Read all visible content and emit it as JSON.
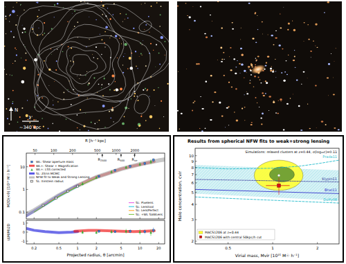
{
  "images": [
    {
      "north_label": "N",
      "scale_label": "1'",
      "scale_kpc": "~340 kpc"
    }
  ],
  "chart_data": [
    {
      "type": "line",
      "y_label": "M2D(<θ) [10¹⁴ M☉ h⁻¹]",
      "x2_label": "R [h⁻¹ kpc]",
      "log": true,
      "xlim": [
        0.15,
        25
      ],
      "xticks": [
        0.2,
        0.5,
        1,
        2,
        5,
        10,
        20
      ],
      "x2lim": [
        36.2,
        6025
      ],
      "x2ticks": [
        50,
        100,
        200,
        500,
        1000,
        2000
      ],
      "ylim": [
        0.05,
        40
      ],
      "yticks": [
        0.1,
        1,
        10
      ],
      "tick_labels": "y",
      "legend": "upper left",
      "annotations": [
        {
          "text": "R2500",
          "x2": 600
        },
        {
          "text": "R500",
          "x2": 1200
        },
        {
          "text": "Rvir",
          "x2": 1980
        }
      ],
      "series": [
        {
          "name": "WL: Shear aperture mass",
          "type": "scatter",
          "marker": "square",
          "color": "#3b7ddd",
          "x": [
            2.2,
            4,
            7,
            12,
            16.5
          ],
          "values": [
            3.8,
            7,
            10.5,
            14,
            20
          ],
          "errors": [
            0.5,
            0.9,
            1.5,
            2.5,
            4
          ]
        },
        {
          "name": "WL+: Shear + Magnification",
          "type": "area",
          "color": "#ee1111",
          "x": [
            0.9,
            1.5,
            2,
            3,
            5,
            8,
            12,
            17
          ],
          "values": [
            1.3,
            2.5,
            3.5,
            5,
            8,
            11,
            14,
            17
          ]
        },
        {
          "name": "WL+: LSS corrected",
          "type": "scatter",
          "marker": "triangle",
          "color": "#33cc33",
          "x": [
            1.2,
            2,
            3.5,
            6,
            10,
            15
          ],
          "values": [
            1.8,
            3.4,
            6,
            9.5,
            13,
            17
          ],
          "errors": [
            0.3,
            0.5,
            0.9,
            1.5,
            2.5,
            4
          ]
        },
        {
          "name": "SL: Zitrin MCMC",
          "type": "area",
          "color": "#2222dd",
          "x": [
            0.15,
            0.2,
            0.3,
            0.5,
            0.8,
            1.0
          ],
          "values": [
            0.07,
            0.11,
            0.22,
            0.55,
            1.1,
            1.5
          ]
        },
        {
          "name": "NFW fit to Weak and Strong Lensing",
          "type": "area",
          "color": "#aaaaaa",
          "x": [
            0.15,
            0.2,
            0.5,
            1,
            2,
            5,
            10,
            20,
            25
          ],
          "values": [
            0.08,
            0.12,
            0.55,
            1.5,
            3.5,
            8,
            13,
            19,
            21
          ]
        },
        {
          "name": "SL: Einstein radius",
          "type": "scatter",
          "marker": "open_square",
          "color": "#333333",
          "x": [
            0.28,
            0.45,
            0.7,
            1.0
          ],
          "values": [
            0.2,
            0.42,
            0.85,
            1.4
          ]
        },
        {
          "name": "SL: Pixelens",
          "type": "line",
          "line_style": "solid",
          "color": "#e040e0",
          "x": [
            0.3,
            0.5,
            0.8,
            1.1
          ],
          "values": [
            0.22,
            0.5,
            1.0,
            1.55
          ]
        },
        {
          "name": "SL: Lenstool",
          "type": "line",
          "line_style": "solid",
          "color": "#00c0e0",
          "x": [
            0.3,
            0.5,
            0.8,
            1.1
          ],
          "values": [
            0.2,
            0.47,
            0.95,
            1.5
          ]
        },
        {
          "name": "SL: LensPerfect",
          "type": "line",
          "line_style": "solid",
          "color": "#ff9900",
          "x": [
            0.35,
            0.6,
            0.9
          ],
          "values": [
            0.28,
            0.65,
            1.2
          ]
        },
        {
          "name": "SL: +WL SaWLens",
          "type": "line",
          "line_style": "solid",
          "color": "#66bb22",
          "x": [
            0.2,
            0.5,
            1.0,
            2.0
          ],
          "values": [
            0.1,
            0.5,
            1.35,
            3.2
          ]
        }
      ]
    },
    {
      "type": "line",
      "y_label": "(ΔM/M)2D",
      "x_label": "Projected radius, θ [arcmin]",
      "log": "x",
      "xlim": [
        0.15,
        25
      ],
      "xticks": [
        0.2,
        0.5,
        1,
        2,
        5,
        10,
        20
      ],
      "ylim": [
        -1.3,
        1.3
      ],
      "yticks": [
        -1,
        0,
        1
      ],
      "tick_labels": true,
      "series": [
        {
          "type": "area",
          "color": "#2222dd",
          "x": [
            0.15,
            0.2,
            0.3,
            0.5,
            0.8,
            1.0
          ],
          "values": [
            0.4,
            0.2,
            0.05,
            -0.05,
            0.0,
            0.05
          ]
        },
        {
          "type": "area",
          "color": "#ee1111",
          "x": [
            0.9,
            1.5,
            2,
            3,
            5,
            8,
            12,
            17
          ],
          "values": [
            0.1,
            0.2,
            0.2,
            0.15,
            0.1,
            0.05,
            0.1,
            0.15
          ]
        },
        {
          "type": "scatter",
          "marker": "square",
          "color": "#3b7ddd",
          "x": [
            2.2,
            4,
            7,
            12,
            16.5
          ],
          "values": [
            0.1,
            0.05,
            0.1,
            0.05,
            0.2
          ],
          "errors": [
            0.15,
            0.15,
            0.2,
            0.25,
            0.3
          ]
        },
        {
          "type": "scatter",
          "marker": "triangle",
          "color": "#33cc33",
          "x": [
            1.2,
            2,
            3.5,
            6,
            10,
            15
          ],
          "values": [
            0,
            -0.02,
            0.05,
            0.1,
            0.02,
            -0.05
          ],
          "errors": [
            0.2,
            0.2,
            0.2,
            0.25,
            0.3,
            0.35
          ]
        }
      ]
    },
    {
      "type": "line",
      "title": "Results from spherical NFW fits to weak+strong lensing",
      "x_label": "Virial mass, Mvir [10¹⁵ M☉ h⁻¹]",
      "y_label": "Halo concentration, cvir",
      "log": true,
      "xlim": [
        0.3,
        2.8
      ],
      "xticks": [
        0.5,
        1,
        2
      ],
      "ylim": [
        1.9,
        11.5
      ],
      "yticks": [
        2,
        3,
        4,
        5,
        6,
        7,
        8,
        9,
        10
      ],
      "tick_labels": true,
      "legend": "lower left",
      "band": {
        "name": "Simulations: relaxed clusters at z=0.44, σ(log₁₀c)=0.11",
        "color": "#33bbcc",
        "x": [
          0.3,
          2.8
        ],
        "lower": [
          4.9,
          4.3
        ],
        "upper": [
          8.4,
          7.6
        ]
      },
      "contours": [
        {
          "name": "MACS1206 at z=0.44",
          "color": "#ffff33",
          "center": [
            1.1,
            6.9
          ],
          "x_range": [
            0.75,
            1.6
          ],
          "y_range": [
            5.2,
            9.2
          ]
        },
        {
          "color": "#669933",
          "center": [
            1.15,
            7.0
          ],
          "x_range": [
            0.95,
            1.4
          ],
          "y_range": [
            6.1,
            8.1
          ]
        }
      ],
      "series": [
        {
          "name": "Prada11",
          "type": "line",
          "line_style": "dashed",
          "color": "#22bbcc",
          "x": [
            0.3,
            0.5,
            1,
            1.5,
            2,
            2.8
          ],
          "values": [
            8.0,
            7.8,
            7.9,
            8.2,
            8.6,
            9.2
          ]
        },
        {
          "name": "Klypin11",
          "type": "line",
          "line_style": "dotted",
          "color": "#333399",
          "x": [
            0.3,
            2.8
          ],
          "values": [
            6.4,
            6.1
          ]
        },
        {
          "name": "Bhat11",
          "type": "line",
          "line_style": "solid",
          "color": "#3333cc",
          "x": [
            0.3,
            2.8
          ],
          "values": [
            5.3,
            4.9
          ]
        },
        {
          "name": "Duffy08",
          "type": "line",
          "line_style": "dashed",
          "color": "#22bbcc",
          "x": [
            0.3,
            2.8
          ],
          "values": [
            4.6,
            4.1
          ]
        },
        {
          "name": "MACS1206 with central 50kpc/h cut",
          "type": "scatter",
          "marker": "square",
          "color": "#dd1111",
          "x": [
            1.1
          ],
          "values": [
            5.7
          ],
          "x_errors": [
            0.2
          ],
          "errors": [
            0.9
          ]
        }
      ]
    }
  ]
}
